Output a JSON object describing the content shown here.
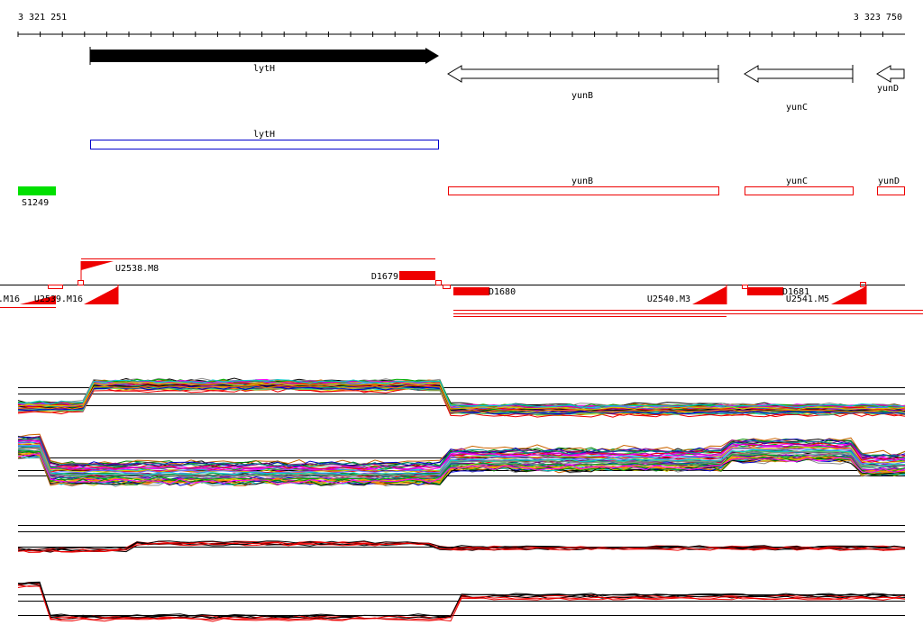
{
  "ruler": {
    "start": "3 321 251",
    "end": "3 323 750"
  },
  "genes": [
    {
      "label": "lytH"
    },
    {
      "label": "yunB"
    },
    {
      "label": "yunC"
    },
    {
      "label": "yunD"
    }
  ],
  "annotations": {
    "blue": "lytH",
    "green": "S1249",
    "red": [
      "yunB",
      "yunC",
      "yunD"
    ]
  },
  "features": [
    {
      "label": "U2538.M8"
    },
    {
      "label": "D1679"
    },
    {
      "label": ".M16"
    },
    {
      "label": "U2539.M16"
    },
    {
      "label": "D1680"
    },
    {
      "label": "U2540.M3"
    },
    {
      "label": "D1681"
    },
    {
      "label": "U2541.M5"
    }
  ]
}
